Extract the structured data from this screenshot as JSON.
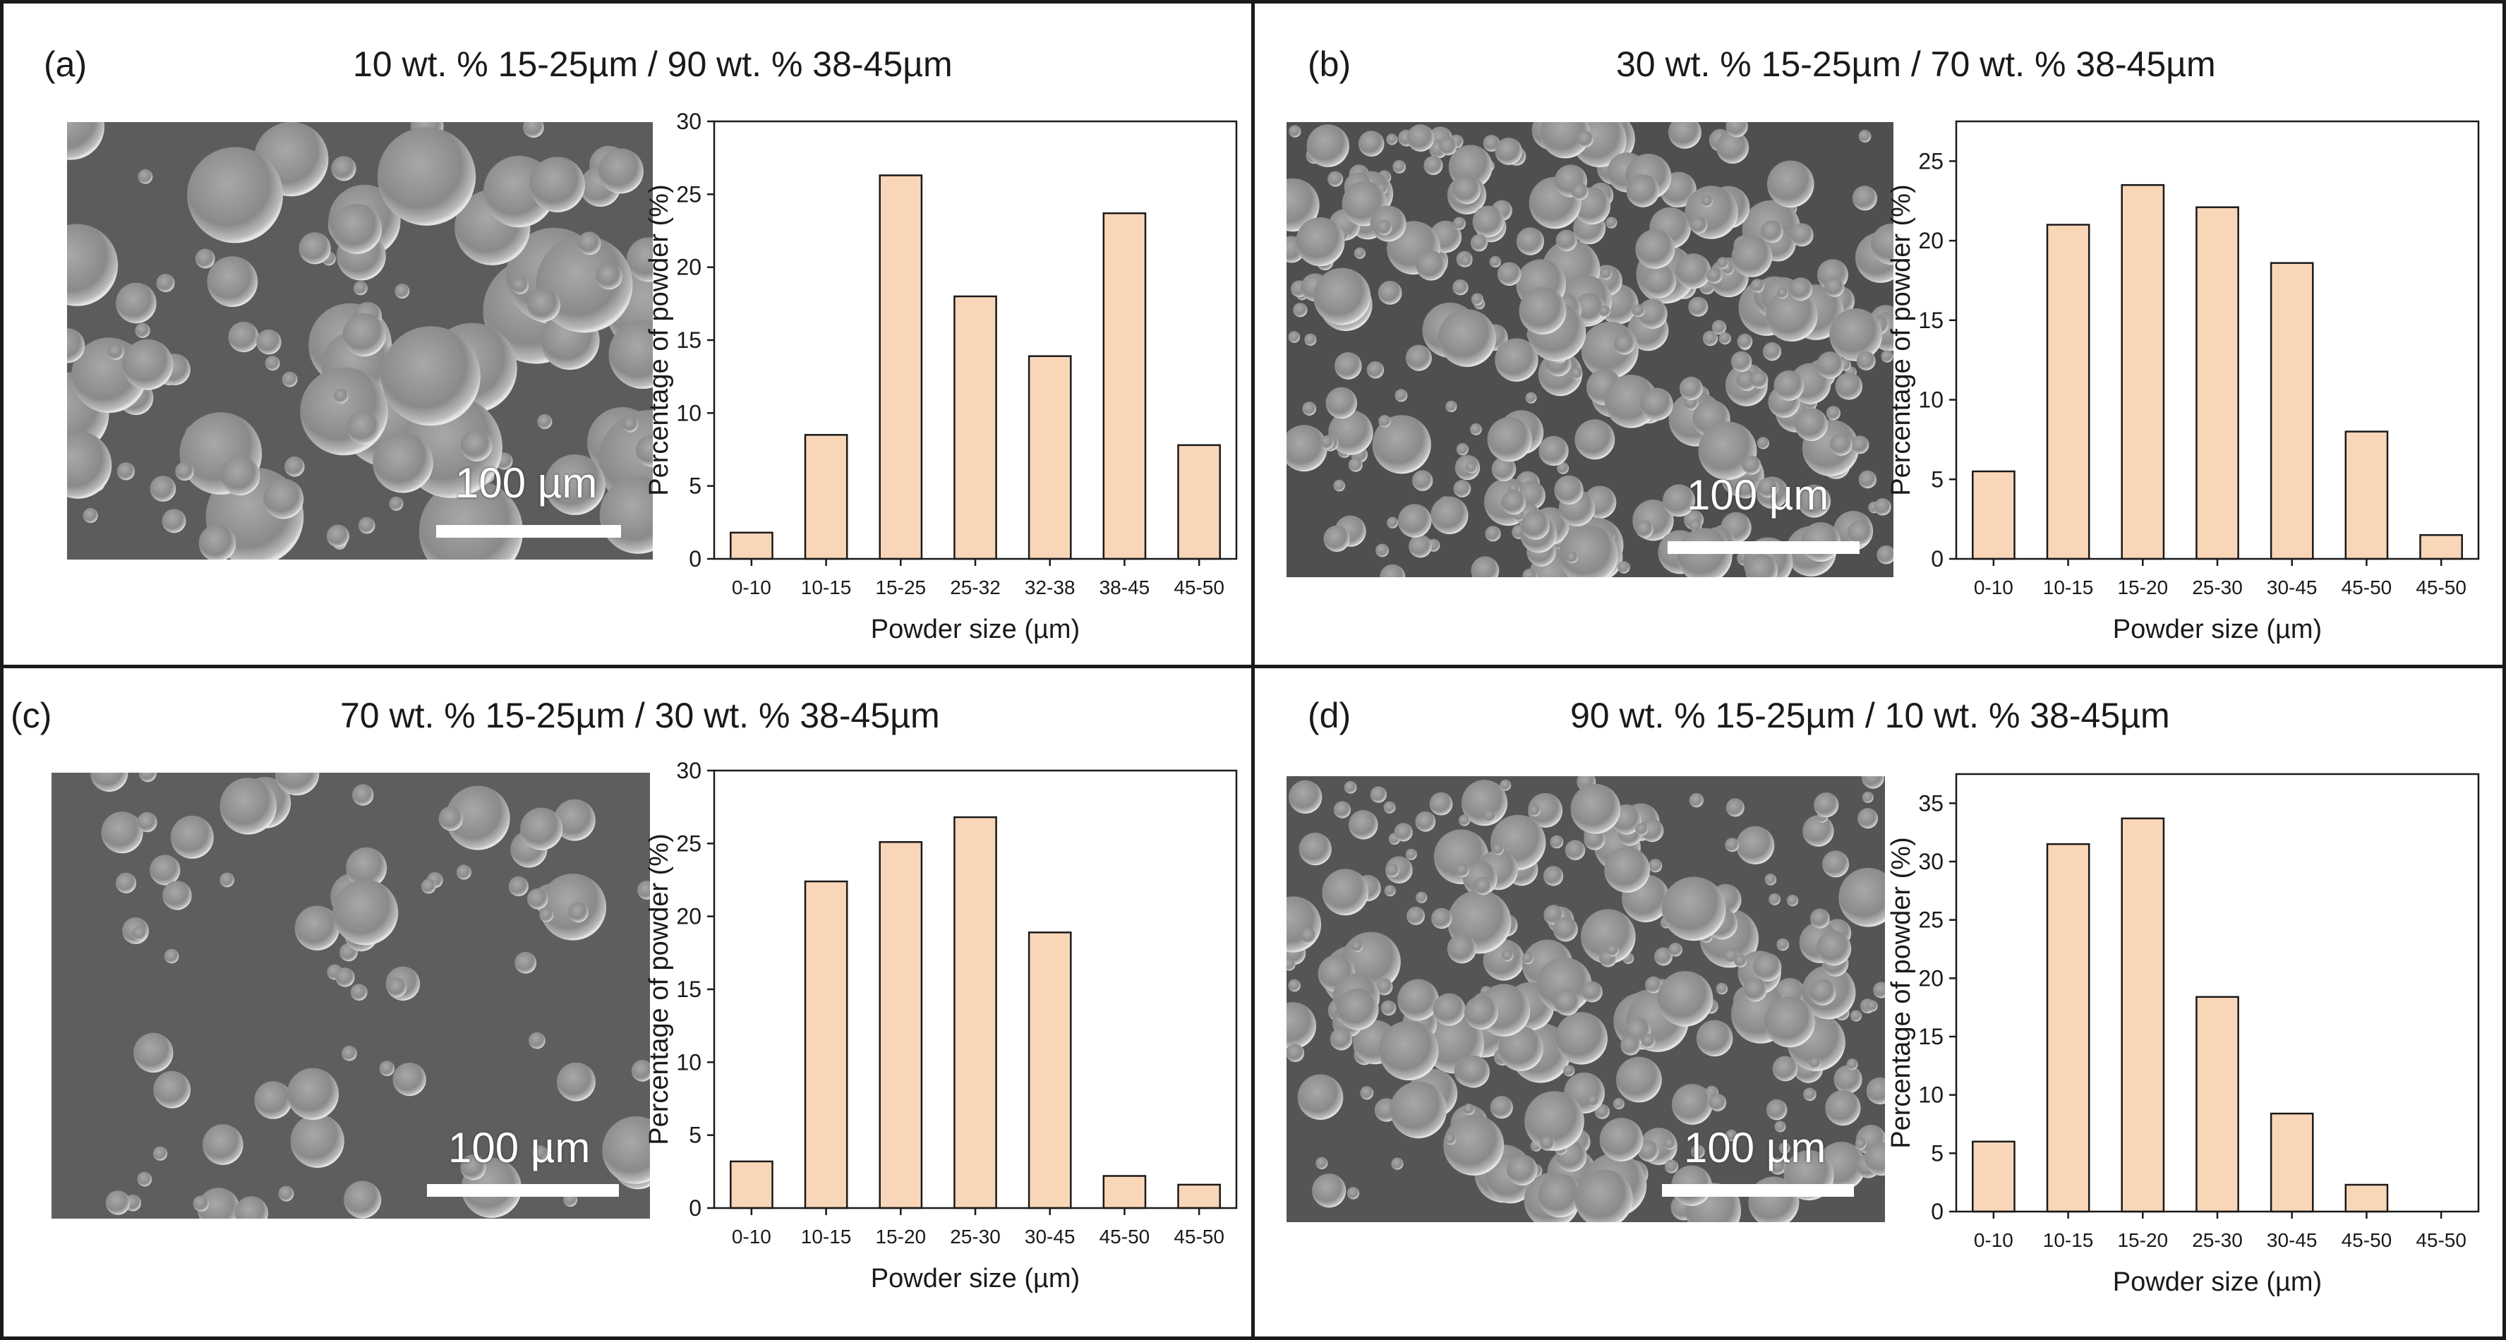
{
  "colors": {
    "bar_fill": "#fad6b8",
    "bar_stroke": "#1a1a1a",
    "border": "#1a1a1a"
  },
  "panels": [
    {
      "letter": "(a)",
      "title": "10 wt. % 15-25µm / 90 wt. % 38-45µm",
      "scale_label": "100 µm",
      "chart_data": {
        "type": "bar",
        "categories": [
          "0-10",
          "10-15",
          "15-25",
          "25-32",
          "32-38",
          "38-45",
          "45-50"
        ],
        "values": [
          1.8,
          8.5,
          26.3,
          18.0,
          13.9,
          23.7,
          7.8
        ],
        "xlabel": "Powder size (µm)",
        "ylabel": "Percentage of powder (%)",
        "ylim": [
          0,
          30
        ],
        "yticks": [
          0,
          5,
          10,
          15,
          20,
          25,
          30
        ]
      }
    },
    {
      "letter": "(b)",
      "title": "30 wt. % 15-25µm / 70 wt. % 38-45µm",
      "scale_label": "100 µm",
      "chart_data": {
        "type": "bar",
        "categories": [
          "0-10",
          "10-15",
          "15-20",
          "25-30",
          "30-45",
          "45-50",
          "45-50"
        ],
        "values": [
          5.5,
          21.0,
          23.5,
          22.1,
          18.6,
          8.0,
          1.5
        ],
        "xlabel": "Powder size (µm)",
        "ylabel": "Percentage of powder (%)",
        "ylim": [
          0,
          27.5
        ],
        "yticks": [
          0,
          5,
          10,
          15,
          20,
          25
        ]
      }
    },
    {
      "letter": "(c)",
      "title": "70 wt. % 15-25µm / 30 wt. % 38-45µm",
      "scale_label": "100 µm",
      "chart_data": {
        "type": "bar",
        "categories": [
          "0-10",
          "10-15",
          "15-20",
          "25-30",
          "30-45",
          "45-50",
          "45-50"
        ],
        "values": [
          3.2,
          22.4,
          25.1,
          26.8,
          18.9,
          2.2,
          1.6
        ],
        "xlabel": "Powder size (µm)",
        "ylabel": "Percentage of powder (%)",
        "ylim": [
          0,
          30
        ],
        "yticks": [
          0,
          5,
          10,
          15,
          20,
          25,
          30
        ]
      }
    },
    {
      "letter": "(d)",
      "title": "90 wt. % 15-25µm / 10 wt. % 38-45µm",
      "scale_label": "100 µm",
      "chart_data": {
        "type": "bar",
        "categories": [
          "0-10",
          "10-15",
          "15-20",
          "25-30",
          "30-45",
          "45-50",
          "45-50"
        ],
        "values": [
          6.0,
          31.5,
          33.7,
          18.4,
          8.4,
          2.3,
          0
        ],
        "xlabel": "Powder size (µm)",
        "ylabel": "Percentage of powder (%)",
        "ylim": [
          0,
          37.5
        ],
        "yticks": [
          0,
          5,
          10,
          15,
          20,
          25,
          30,
          35
        ]
      }
    }
  ]
}
